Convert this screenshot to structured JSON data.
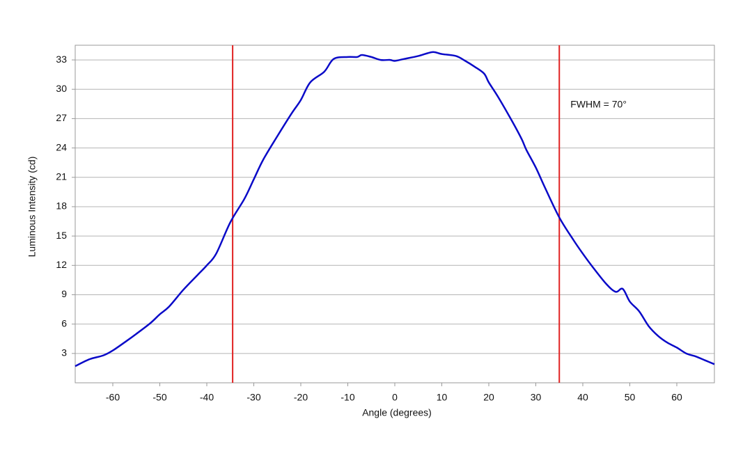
{
  "chart_data": {
    "type": "line",
    "x_label": "Angle (degrees)",
    "y_label": "Luminous Intensity (cd)",
    "annotation": "FWHM = 70°",
    "x": [
      -68,
      -65,
      -62,
      -60,
      -57,
      -55,
      -52,
      -50,
      -48,
      -45,
      -42,
      -40,
      -38,
      -35,
      -32,
      -30,
      -28,
      -25,
      -22,
      -20,
      -18,
      -15,
      -13,
      -10,
      -8,
      -7,
      -5,
      -3,
      -1,
      0,
      2,
      5,
      8,
      10,
      13,
      15,
      17,
      19,
      20,
      22,
      25,
      27,
      28,
      30,
      32,
      35,
      38,
      40,
      42,
      45,
      47,
      48.5,
      50,
      52,
      54,
      56,
      58,
      60,
      62,
      64,
      66,
      68
    ],
    "series": [
      {
        "color": "#0a0ac8",
        "values": [
          1.7,
          2.4,
          2.8,
          3.3,
          4.3,
          5.0,
          6.1,
          7.0,
          7.8,
          9.5,
          11.0,
          12.0,
          13.2,
          16.4,
          18.8,
          20.8,
          22.8,
          25.2,
          27.5,
          28.9,
          30.7,
          31.8,
          33.1,
          33.3,
          33.3,
          33.5,
          33.3,
          33.0,
          33.0,
          32.9,
          33.1,
          33.4,
          33.8,
          33.6,
          33.4,
          32.9,
          32.3,
          31.6,
          30.7,
          29.2,
          26.7,
          24.9,
          23.8,
          22.0,
          19.9,
          16.9,
          14.6,
          13.2,
          11.9,
          10.1,
          9.3,
          9.6,
          8.3,
          7.3,
          5.8,
          4.8,
          4.1,
          3.6,
          3.0,
          2.7,
          2.3,
          1.9
        ]
      }
    ],
    "vlines": [
      -34.5,
      35
    ],
    "vline_color": "#e02020",
    "xlim": [
      -68,
      68
    ],
    "ylim": [
      0,
      34.5
    ],
    "xticks": [
      -60,
      -50,
      -40,
      -30,
      -20,
      -10,
      0,
      10,
      20,
      30,
      40,
      50,
      60
    ],
    "yticks": [
      3,
      6,
      9,
      12,
      15,
      18,
      21,
      24,
      27,
      30,
      33
    ],
    "grid": true
  }
}
